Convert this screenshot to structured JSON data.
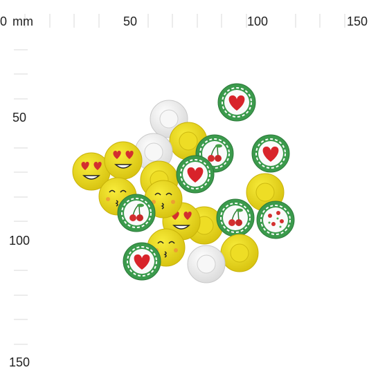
{
  "ruler": {
    "unit": "mm",
    "top_labels": [
      0,
      50,
      100,
      150
    ],
    "left_labels": [
      50,
      100,
      150
    ]
  }
}
